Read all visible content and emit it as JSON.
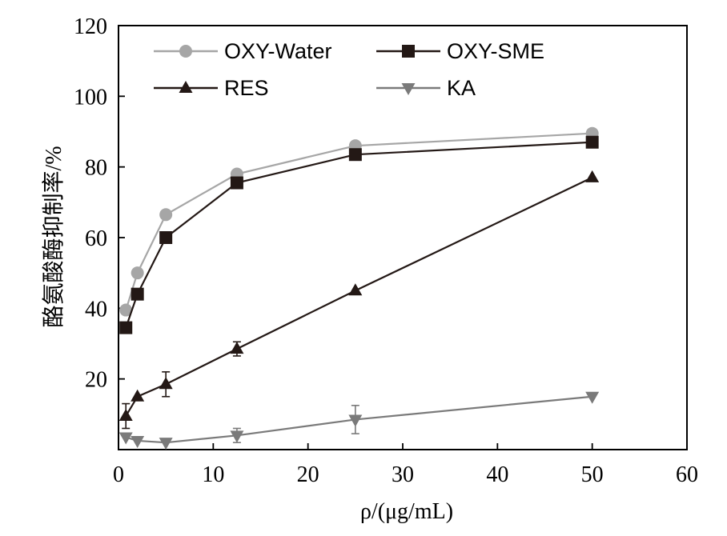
{
  "chart_data": {
    "type": "line",
    "xlabel": "ρ/(μg/mL)",
    "ylabel": "酪氨酸酶抑制率/%",
    "xlim": [
      0,
      60
    ],
    "ylim": [
      0,
      120
    ],
    "xticks": [
      0,
      10,
      20,
      30,
      40,
      50,
      60
    ],
    "yticks": [
      20,
      40,
      60,
      80,
      100,
      120
    ],
    "grid": false,
    "legend_position": "top",
    "series": [
      {
        "name": "OXY-Water",
        "color": "#a6a6a6",
        "marker": "circle",
        "x": [
          0.78,
          2.0,
          5.0,
          12.5,
          25.0,
          50.0
        ],
        "y": [
          39.5,
          50.0,
          66.5,
          78.0,
          86.0,
          89.5
        ],
        "err": [
          0,
          0,
          0,
          0,
          0,
          0
        ]
      },
      {
        "name": "OXY-SME",
        "color": "#231815",
        "marker": "square",
        "x": [
          0.78,
          2.0,
          5.0,
          12.5,
          25.0,
          50.0
        ],
        "y": [
          34.5,
          44.0,
          60.0,
          75.5,
          83.5,
          87.0
        ],
        "err": [
          0,
          0,
          0,
          0,
          0,
          0
        ]
      },
      {
        "name": "RES",
        "color": "#231815",
        "marker": "triangle-up",
        "x": [
          0.78,
          2.0,
          5.0,
          12.5,
          25.0,
          50.0
        ],
        "y": [
          9.5,
          15.0,
          18.5,
          28.5,
          45.0,
          77.0
        ],
        "err": [
          3.5,
          0,
          3.5,
          2.0,
          0,
          0
        ]
      },
      {
        "name": "KA",
        "color": "#7a7a7a",
        "marker": "triangle-down",
        "x": [
          0.78,
          2.0,
          5.0,
          12.5,
          25.0,
          50.0
        ],
        "y": [
          3.5,
          2.5,
          2.0,
          4.0,
          8.5,
          15.0
        ],
        "err": [
          0,
          0,
          0,
          2.0,
          4.0,
          0
        ]
      }
    ]
  }
}
